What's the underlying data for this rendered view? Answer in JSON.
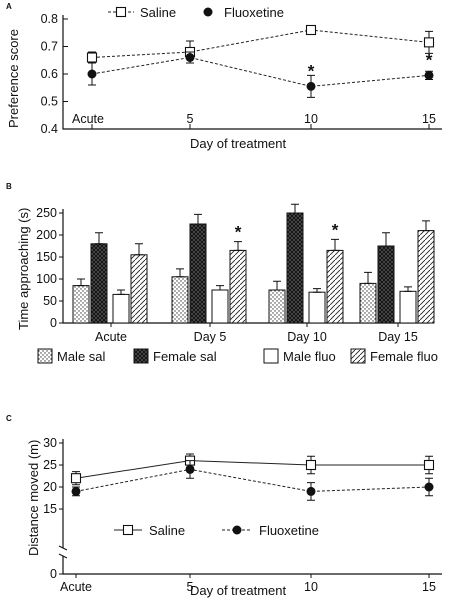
{
  "chart_data": [
    {
      "panel": "A",
      "type": "line",
      "xlabel": "Day of treatment",
      "ylabel": "Preference score",
      "categories": [
        "Acute",
        "5",
        "10",
        "15"
      ],
      "yticks": [
        "0.4",
        "0.5",
        "0.6",
        "0.7",
        "0.8"
      ],
      "ylim": [
        0.4,
        0.8
      ],
      "legend_position": "top",
      "series": [
        {
          "name": "Saline",
          "marker": "open-square",
          "values": [
            0.66,
            0.68,
            0.76,
            0.715
          ],
          "errors": [
            0.02,
            0.04,
            0.015,
            0.04
          ]
        },
        {
          "name": "Fluoxetine",
          "marker": "filled-circle",
          "values": [
            0.6,
            0.66,
            0.555,
            0.595
          ],
          "errors": [
            0.04,
            0.02,
            0.04,
            0.015
          ]
        }
      ],
      "annotations": [
        {
          "text": "*",
          "category": "10"
        },
        {
          "text": "*",
          "category": "15"
        }
      ]
    },
    {
      "panel": "B",
      "type": "bar",
      "ylabel": "Time approaching (s)",
      "categories": [
        "Acute",
        "Day 5",
        "Day 10",
        "Day 15"
      ],
      "yticks": [
        "0",
        "50",
        "100",
        "150",
        "200",
        "250"
      ],
      "ylim": [
        0,
        250
      ],
      "legend_position": "bottom",
      "series": [
        {
          "name": "Male sal",
          "pattern": "dots",
          "values": [
            85,
            105,
            75,
            90
          ],
          "errors": [
            15,
            18,
            20,
            25
          ]
        },
        {
          "name": "Female sal",
          "pattern": "dark-crosshatch",
          "values": [
            180,
            225,
            250,
            175
          ],
          "errors": [
            25,
            22,
            20,
            30
          ]
        },
        {
          "name": "Male fluo",
          "pattern": "white",
          "values": [
            65,
            75,
            70,
            72
          ],
          "errors": [
            10,
            10,
            8,
            10
          ]
        },
        {
          "name": "Female fluo",
          "pattern": "diagonal",
          "values": [
            155,
            165,
            165,
            210
          ],
          "errors": [
            25,
            20,
            25,
            22
          ]
        }
      ],
      "annotations": [
        {
          "text": "*",
          "category": "Day 5"
        },
        {
          "text": "*",
          "category": "Day 10"
        }
      ]
    },
    {
      "panel": "C",
      "type": "line",
      "xlabel": "Day of treatment",
      "ylabel": "Distance moved (m)",
      "categories": [
        "Acute",
        "5",
        "10",
        "15"
      ],
      "yticks": [
        "0",
        "15",
        "20",
        "25",
        "30"
      ],
      "ylim": [
        0,
        30
      ],
      "axis_break": true,
      "legend_position": "bottom-center",
      "series": [
        {
          "name": "Saline",
          "marker": "open-square",
          "values": [
            22,
            26,
            25,
            25
          ],
          "errors": [
            1.5,
            1.5,
            2,
            2
          ]
        },
        {
          "name": "Fluoxetine",
          "marker": "filled-circle",
          "values": [
            19,
            24,
            19,
            20
          ],
          "errors": [
            1,
            2,
            2,
            2
          ]
        }
      ]
    }
  ]
}
